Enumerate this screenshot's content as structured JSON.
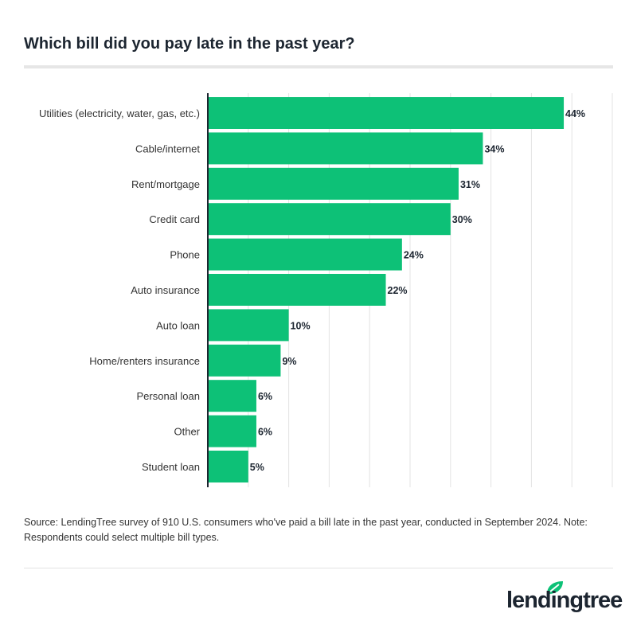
{
  "chart_data": {
    "type": "bar",
    "orientation": "horizontal",
    "title": "Which bill did you pay late in the past year?",
    "categories": [
      "Utilities (electricity, water, gas, etc.)",
      "Cable/internet",
      "Rent/mortgage",
      "Credit card",
      "Phone",
      "Auto insurance",
      "Auto loan",
      "Home/renters insurance",
      "Personal loan",
      "Other",
      "Student loan"
    ],
    "values": [
      44,
      34,
      31,
      30,
      24,
      22,
      10,
      9,
      6,
      6,
      5
    ],
    "value_suffix": "%",
    "xlim": [
      0,
      50
    ],
    "grid": true,
    "bar_color": "#0dc177"
  },
  "source": "Source: LendingTree survey of 910 U.S. consumers who've paid a bill late in the past year, conducted in September 2024. Note: Respondents could select multiple bill types.",
  "logo": {
    "text": "lendingtree",
    "leaf_color": "#0dc177"
  }
}
